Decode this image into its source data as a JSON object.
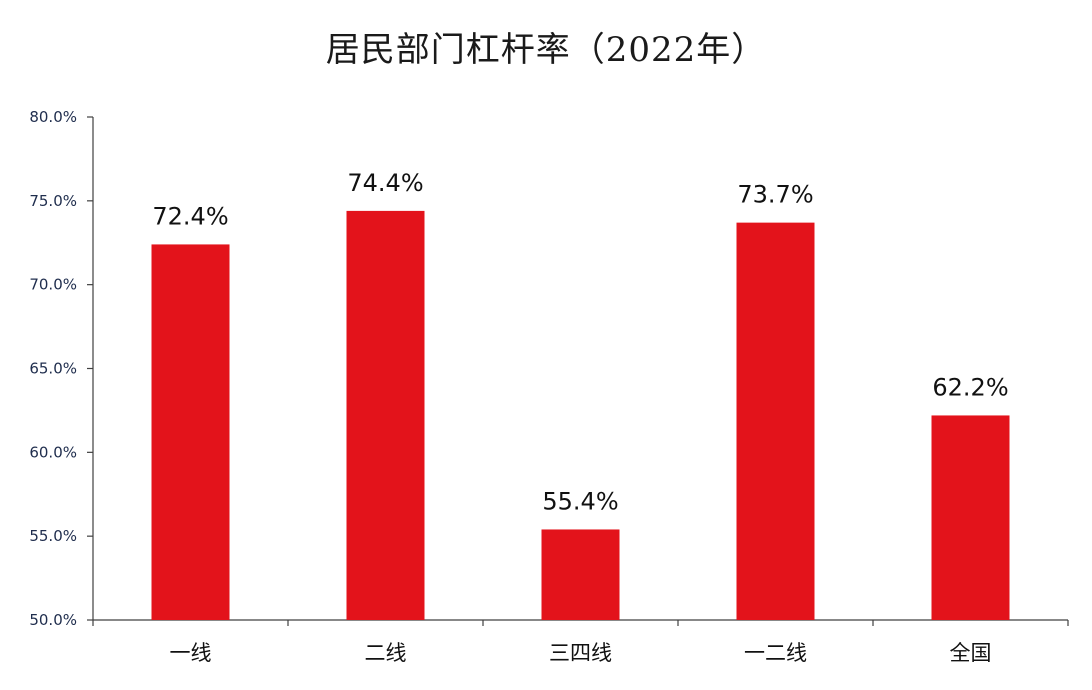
{
  "chart_data": {
    "type": "bar",
    "title": "居民部门杠杆率（2022年）",
    "categories": [
      "一线",
      "二线",
      "三四线",
      "一二线",
      "全国"
    ],
    "values": [
      72.4,
      74.4,
      55.4,
      73.7,
      62.2
    ],
    "data_labels": [
      "72.4%",
      "74.4%",
      "55.4%",
      "73.7%",
      "62.2%"
    ],
    "yticks": [
      50,
      55,
      60,
      65,
      70,
      75,
      80
    ],
    "ytick_labels": [
      "50.0%",
      "55.0%",
      "60.0%",
      "65.0%",
      "70.0%",
      "75.0%",
      "80.0%"
    ],
    "ylim": [
      50,
      80
    ],
    "xlabel": "",
    "ylabel": "",
    "grid": false,
    "legend": "none",
    "bar_color": "#e3131b",
    "axis_color": "#404040"
  }
}
